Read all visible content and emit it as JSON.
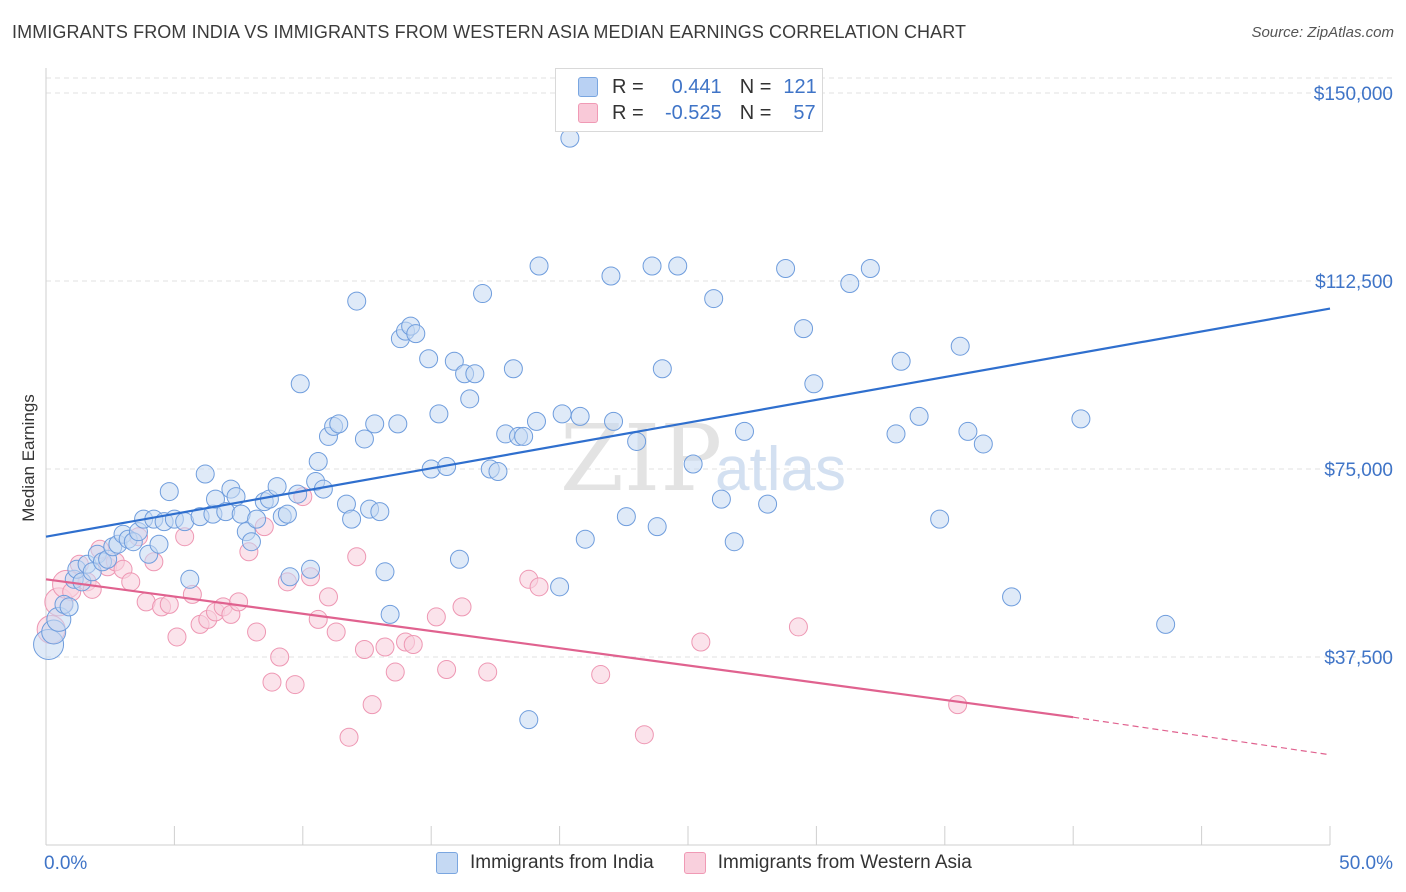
{
  "title": "IMMIGRANTS FROM INDIA VS IMMIGRANTS FROM WESTERN ASIA MEDIAN EARNINGS CORRELATION CHART",
  "source": "Source: ZipAtlas.com",
  "watermark": {
    "zip": "ZIP",
    "atlas": "atlas"
  },
  "legend": {
    "rows": [
      {
        "r_label": "R =",
        "r_value": "0.441",
        "n_label": "N =",
        "n_value": "121",
        "color": "#7aa6e0",
        "fill": "#b9d1f3"
      },
      {
        "r_label": "R =",
        "r_value": "-0.525",
        "n_label": "N =",
        "n_value": "57",
        "color": "#f09ab5",
        "fill": "#f9c9d8"
      }
    ]
  },
  "bottom_legend": [
    "Immigrants from India",
    "Immigrants from Western Asia"
  ],
  "colors": {
    "india_stroke": "#6f9ddd",
    "india_fill": "#c5d9f3",
    "india_line": "#2f6fce",
    "wa_stroke": "#ee97b3",
    "wa_fill": "#f9d0dd",
    "wa_line": "#e0628f",
    "tick_label": "#3f74c7",
    "grid": "#e1e1e1"
  },
  "chart_data": {
    "type": "scatter",
    "title": "IMMIGRANTS FROM INDIA VS IMMIGRANTS FROM WESTERN ASIA MEDIAN EARNINGS CORRELATION CHART",
    "xlabel": "",
    "ylabel": "Median Earnings",
    "xlim": [
      0,
      50
    ],
    "ylim": [
      0,
      153000
    ],
    "x_tick_labels": [
      "0.0%",
      "50.0%"
    ],
    "y_ticks": [
      37500,
      75000,
      112500,
      150000
    ],
    "y_tick_labels": [
      "$37,500",
      "$75,000",
      "$112,500",
      "$150,000"
    ],
    "grid": true,
    "legend_position": "top-center",
    "series": [
      {
        "name": "Immigrants from India",
        "r": 0.441,
        "n": 121,
        "trend": {
          "x0": 0,
          "y0": 61500,
          "x1": 50,
          "y1": 107000
        },
        "points": [
          [
            0.1,
            40000
          ],
          [
            0.3,
            42500
          ],
          [
            0.5,
            45000
          ],
          [
            0.7,
            48000
          ],
          [
            0.9,
            47500
          ],
          [
            1.1,
            53000
          ],
          [
            1.2,
            55000
          ],
          [
            1.4,
            52500
          ],
          [
            1.6,
            56000
          ],
          [
            1.8,
            54500
          ],
          [
            2.0,
            58000
          ],
          [
            2.2,
            56500
          ],
          [
            2.4,
            57000
          ],
          [
            2.6,
            59500
          ],
          [
            2.8,
            60000
          ],
          [
            3.0,
            62000
          ],
          [
            3.2,
            61000
          ],
          [
            3.4,
            60500
          ],
          [
            3.6,
            62500
          ],
          [
            3.8,
            65000
          ],
          [
            4.0,
            58000
          ],
          [
            4.2,
            65000
          ],
          [
            4.4,
            60000
          ],
          [
            4.6,
            64500
          ],
          [
            4.8,
            70500
          ],
          [
            5.0,
            65000
          ],
          [
            5.4,
            64500
          ],
          [
            5.6,
            53000
          ],
          [
            6.0,
            65500
          ],
          [
            6.2,
            74000
          ],
          [
            6.5,
            66000
          ],
          [
            6.6,
            69000
          ],
          [
            7.0,
            66500
          ],
          [
            7.2,
            71000
          ],
          [
            7.4,
            69500
          ],
          [
            7.6,
            66000
          ],
          [
            7.8,
            62500
          ],
          [
            8.0,
            60500
          ],
          [
            8.2,
            65000
          ],
          [
            8.5,
            68500
          ],
          [
            8.7,
            69000
          ],
          [
            9.0,
            71500
          ],
          [
            9.2,
            65500
          ],
          [
            9.4,
            66000
          ],
          [
            9.5,
            53500
          ],
          [
            9.8,
            70000
          ],
          [
            9.9,
            92000
          ],
          [
            10.3,
            55000
          ],
          [
            10.5,
            72500
          ],
          [
            10.6,
            76500
          ],
          [
            10.8,
            71000
          ],
          [
            11.0,
            81500
          ],
          [
            11.2,
            83500
          ],
          [
            11.4,
            84000
          ],
          [
            11.7,
            68000
          ],
          [
            11.9,
            65000
          ],
          [
            12.1,
            108500
          ],
          [
            12.4,
            81000
          ],
          [
            12.6,
            67000
          ],
          [
            12.8,
            84000
          ],
          [
            13.0,
            66500
          ],
          [
            13.2,
            54500
          ],
          [
            13.4,
            46000
          ],
          [
            13.7,
            84000
          ],
          [
            13.8,
            101000
          ],
          [
            14.0,
            102500
          ],
          [
            14.2,
            103500
          ],
          [
            14.4,
            102000
          ],
          [
            14.9,
            97000
          ],
          [
            15.0,
            75000
          ],
          [
            15.3,
            86000
          ],
          [
            15.6,
            75500
          ],
          [
            15.9,
            96500
          ],
          [
            16.1,
            57000
          ],
          [
            16.3,
            94000
          ],
          [
            16.5,
            89000
          ],
          [
            16.7,
            94000
          ],
          [
            17.0,
            110000
          ],
          [
            17.3,
            75000
          ],
          [
            17.6,
            74500
          ],
          [
            17.9,
            82000
          ],
          [
            18.2,
            95000
          ],
          [
            18.4,
            81500
          ],
          [
            18.6,
            81500
          ],
          [
            18.8,
            25000
          ],
          [
            19.1,
            84500
          ],
          [
            19.2,
            115500
          ],
          [
            20.0,
            51500
          ],
          [
            20.1,
            86000
          ],
          [
            20.4,
            141000
          ],
          [
            20.8,
            85500
          ],
          [
            21.0,
            61000
          ],
          [
            22.0,
            113500
          ],
          [
            22.1,
            84500
          ],
          [
            22.6,
            65500
          ],
          [
            23.0,
            80500
          ],
          [
            23.6,
            115500
          ],
          [
            23.8,
            63500
          ],
          [
            24.0,
            95000
          ],
          [
            24.6,
            115500
          ],
          [
            25.2,
            76000
          ],
          [
            26.0,
            109000
          ],
          [
            26.3,
            69000
          ],
          [
            26.8,
            60500
          ],
          [
            27.2,
            82500
          ],
          [
            28.1,
            68000
          ],
          [
            28.8,
            115000
          ],
          [
            29.5,
            103000
          ],
          [
            29.9,
            92000
          ],
          [
            31.3,
            112000
          ],
          [
            32.1,
            115000
          ],
          [
            33.1,
            82000
          ],
          [
            33.3,
            96500
          ],
          [
            34.0,
            85500
          ],
          [
            34.8,
            65000
          ],
          [
            35.6,
            99500
          ],
          [
            35.9,
            82500
          ],
          [
            36.5,
            80000
          ],
          [
            37.6,
            49500
          ],
          [
            40.3,
            85000
          ],
          [
            43.6,
            44000
          ]
        ]
      },
      {
        "name": "Immigrants from Western Asia",
        "r": -0.525,
        "n": 57,
        "trend": {
          "x0": 0,
          "y0": 53000,
          "x1": 40,
          "y1": 25500
        },
        "trend_dashed_to": {
          "x": 50,
          "y": 18000
        },
        "points": [
          [
            0.2,
            43000
          ],
          [
            0.5,
            48500
          ],
          [
            0.8,
            52000
          ],
          [
            1.0,
            50500
          ],
          [
            1.3,
            56000
          ],
          [
            1.6,
            52500
          ],
          [
            1.8,
            51000
          ],
          [
            2.1,
            59000
          ],
          [
            2.4,
            55500
          ],
          [
            2.7,
            56500
          ],
          [
            3.0,
            55000
          ],
          [
            3.3,
            52500
          ],
          [
            3.6,
            61500
          ],
          [
            3.9,
            48500
          ],
          [
            4.2,
            56500
          ],
          [
            4.5,
            47500
          ],
          [
            4.8,
            48000
          ],
          [
            5.1,
            41500
          ],
          [
            5.4,
            61500
          ],
          [
            5.7,
            50000
          ],
          [
            6.0,
            44000
          ],
          [
            6.3,
            45000
          ],
          [
            6.6,
            46500
          ],
          [
            6.9,
            47500
          ],
          [
            7.2,
            46000
          ],
          [
            7.5,
            48500
          ],
          [
            7.9,
            58500
          ],
          [
            8.2,
            42500
          ],
          [
            8.5,
            63500
          ],
          [
            8.8,
            32500
          ],
          [
            9.1,
            37500
          ],
          [
            9.4,
            52500
          ],
          [
            9.7,
            32000
          ],
          [
            10.0,
            69500
          ],
          [
            10.3,
            53500
          ],
          [
            10.6,
            45000
          ],
          [
            11.0,
            49500
          ],
          [
            11.3,
            42500
          ],
          [
            11.8,
            21500
          ],
          [
            12.1,
            57500
          ],
          [
            12.4,
            39000
          ],
          [
            12.7,
            28000
          ],
          [
            13.2,
            39500
          ],
          [
            13.6,
            34500
          ],
          [
            14.0,
            40500
          ],
          [
            14.3,
            40000
          ],
          [
            15.2,
            45500
          ],
          [
            15.6,
            35000
          ],
          [
            16.2,
            47500
          ],
          [
            17.2,
            34500
          ],
          [
            18.8,
            53000
          ],
          [
            19.2,
            51500
          ],
          [
            21.6,
            34000
          ],
          [
            23.3,
            22000
          ],
          [
            25.5,
            40500
          ],
          [
            29.3,
            43500
          ],
          [
            35.5,
            28000
          ]
        ]
      }
    ]
  }
}
